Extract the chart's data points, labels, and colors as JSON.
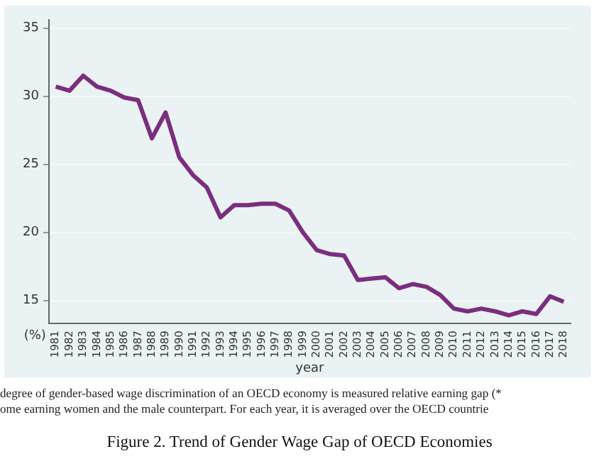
{
  "chart_data": {
    "type": "line",
    "title": "Figure 2.  Trend of Gender Wage Gap of OECD Economies",
    "xlabel": "year",
    "ylabel": "(%)",
    "annotations": [
      "degree of gender-based wage discrimination of an OECD economy is measured relative earning gap (*",
      "ome earning women and the male counterpart. For each year, it is averaged over the OECD countrie"
    ],
    "categories": [
      "1981",
      "1982",
      "1983",
      "1984",
      "1985",
      "1986",
      "1987",
      "1988",
      "1989",
      "1990",
      "1991",
      "1992",
      "1993",
      "1994",
      "1995",
      "1996",
      "1997",
      "1998",
      "1999",
      "2000",
      "2001",
      "2002",
      "2003",
      "2004",
      "2005",
      "2006",
      "2007",
      "2008",
      "2009",
      "2010",
      "2011",
      "2012",
      "2013",
      "2014",
      "2015",
      "2016",
      "2017",
      "2018"
    ],
    "series": [
      {
        "color": "#7a2e7e",
        "values": [
          30.7,
          30.4,
          31.5,
          30.7,
          30.4,
          29.9,
          29.7,
          26.9,
          28.8,
          25.5,
          24.2,
          23.3,
          21.1,
          22.0,
          22.0,
          22.1,
          22.1,
          21.6,
          20.0,
          18.7,
          18.4,
          18.3,
          16.5,
          16.6,
          16.7,
          15.9,
          16.2,
          16.0,
          15.4,
          14.4,
          14.2,
          14.4,
          14.2,
          13.9,
          14.2,
          14.0,
          15.3,
          14.9
        ]
      }
    ],
    "ylim": [
      13.3,
      35.6
    ],
    "yticks": [
      15,
      20,
      25,
      30,
      35
    ],
    "grid": "y",
    "legend": false,
    "marker": "none",
    "line_style": "solid"
  }
}
